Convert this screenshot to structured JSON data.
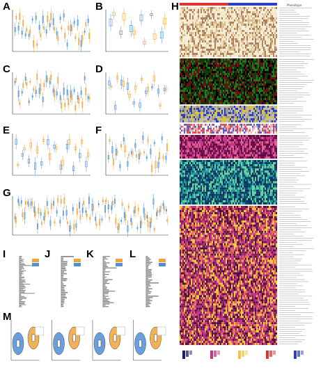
{
  "figure": {
    "panels": [
      {
        "letter": "A"
      },
      {
        "letter": "B"
      },
      {
        "letter": "C"
      },
      {
        "letter": "D"
      },
      {
        "letter": "E"
      },
      {
        "letter": "F"
      },
      {
        "letter": "G"
      },
      {
        "letter": "H"
      },
      {
        "letter": "I"
      },
      {
        "letter": "J"
      },
      {
        "letter": "K"
      },
      {
        "letter": "L"
      },
      {
        "letter": "M"
      }
    ],
    "heatmap_header": "Phenotype",
    "colors": {
      "group_1": "#4f8fd6",
      "group_2": "#f0a33a",
      "heat_low": "#1a1a6e",
      "heat_mid": "#c2338a",
      "heat_high": "#f5c542",
      "track_red": "#e0322e",
      "track_blue": "#2c3fc4"
    }
  }
}
